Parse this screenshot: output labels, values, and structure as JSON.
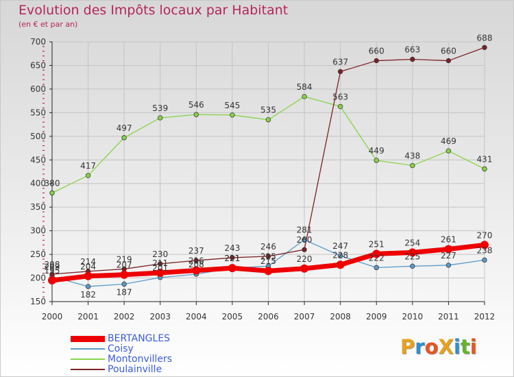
{
  "header": {
    "title": "Evolution des Impôts locaux par Habitant",
    "subtitle": "(en € et par an)"
  },
  "logo": {
    "text": "ProXiti",
    "letters": [
      "P",
      "r",
      "o",
      "X",
      "i",
      "t",
      "i"
    ],
    "colors": [
      "#e8a21c",
      "#2f8fd1",
      "#e8561c",
      "#e8a21c",
      "#2f8fd1",
      "#66b32e",
      "#e8561c"
    ]
  },
  "colors": {
    "title": "#b5245a",
    "tick_labels": "#333333",
    "grid": "#c4c4c4",
    "axis": "#222222",
    "minor_ticks": "#c0002a"
  },
  "chart_data": {
    "type": "line",
    "title": "Evolution des Impôts locaux par Habitant",
    "subtitle": "(en € et par an)",
    "xlabel": "",
    "ylabel": "",
    "x": [
      "2000",
      "2001",
      "2002",
      "2003",
      "2004",
      "2005",
      "2006",
      "2007",
      "2008",
      "2009",
      "2010",
      "2011",
      "2012"
    ],
    "ylim": [
      150,
      700
    ],
    "yticks": [
      150,
      200,
      250,
      300,
      350,
      400,
      450,
      500,
      550,
      600,
      650,
      700
    ],
    "grid": true,
    "legend_position": "bottom-left",
    "series": [
      {
        "name": "BERTANGLES",
        "color": "#ee0000",
        "values": [
          195,
          204,
          207,
          211,
          216,
          221,
          215,
          220,
          228,
          251,
          254,
          261,
          270
        ]
      },
      {
        "name": "Coisy",
        "color": "#5b9ac8",
        "values": [
          203,
          182,
          187,
          201,
          208,
          221,
          225,
          281,
          247,
          222,
          225,
          227,
          238
        ]
      },
      {
        "name": "Montonvillers",
        "color": "#88d448",
        "values": [
          380,
          417,
          497,
          539,
          546,
          545,
          535,
          584,
          563,
          449,
          438,
          469,
          431
        ]
      },
      {
        "name": "Poulainville",
        "color": "#7b2024",
        "values": [
          208,
          214,
          219,
          230,
          237,
          243,
          246,
          260,
          637,
          660,
          663,
          660,
          688
        ]
      }
    ]
  }
}
